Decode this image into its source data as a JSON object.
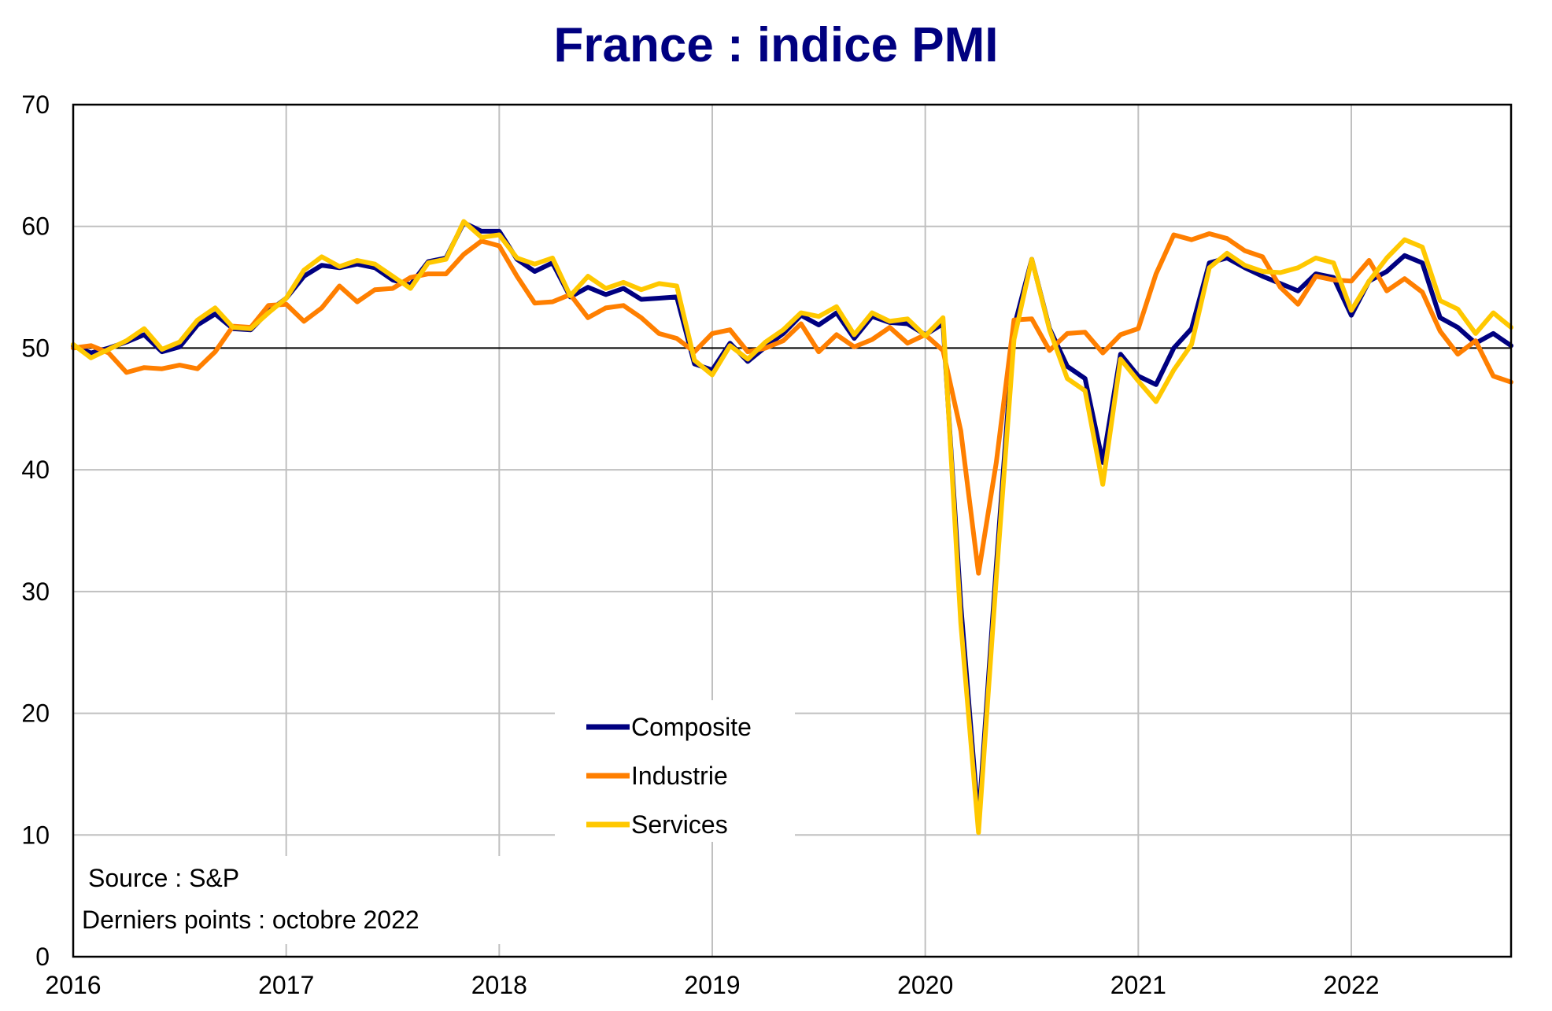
{
  "chart_data": {
    "type": "line",
    "title": "France : indice PMI",
    "title_color": "#000080",
    "ylim": [
      0,
      70
    ],
    "yticks": [
      "0",
      "10",
      "20",
      "30",
      "40",
      "50",
      "60",
      "70"
    ],
    "xlim": [
      "2016-01",
      "2022-10"
    ],
    "xticks": [
      "2016",
      "2017",
      "2018",
      "2019",
      "2020",
      "2021",
      "2022"
    ],
    "reference_line": 50,
    "grid": true,
    "legend_position": "bottom-center",
    "start_month": "2016-01",
    "series": [
      {
        "name": "Composite",
        "color": "#000080",
        "values": [
          50.2,
          49.6,
          50.0,
          50.5,
          51.1,
          49.7,
          50.1,
          51.9,
          52.8,
          51.6,
          51.5,
          53.0,
          54.1,
          55.9,
          56.8,
          56.6,
          56.9,
          56.6,
          55.6,
          55.2,
          57.1,
          57.4,
          60.3,
          59.6,
          59.6,
          57.3,
          56.3,
          57.0,
          54.2,
          55.0,
          54.4,
          54.9,
          54.0,
          54.1,
          54.2,
          48.7,
          48.2,
          50.4,
          48.9,
          50.1,
          51.2,
          52.7,
          51.9,
          52.9,
          50.8,
          52.6,
          52.1,
          52.0,
          51.1,
          52.0,
          28.9,
          11.1,
          32.1,
          51.7,
          57.3,
          51.6,
          48.5,
          47.5,
          40.6,
          49.5,
          47.7,
          47.0,
          50.0,
          51.6,
          57.0,
          57.4,
          56.6,
          55.9,
          55.3,
          54.7,
          56.1,
          55.8,
          52.7,
          55.5,
          56.3,
          57.6,
          57.0,
          52.5,
          51.7,
          50.4,
          51.2,
          50.2
        ]
      },
      {
        "name": "Industrie",
        "color": "#FF7F00",
        "values": [
          50.0,
          50.2,
          49.6,
          48.0,
          48.4,
          48.3,
          48.6,
          48.3,
          49.7,
          51.8,
          51.7,
          53.5,
          53.6,
          52.2,
          53.3,
          55.1,
          53.8,
          54.8,
          54.9,
          55.8,
          56.1,
          56.1,
          57.7,
          58.8,
          58.4,
          55.9,
          53.7,
          53.8,
          54.4,
          52.5,
          53.3,
          53.5,
          52.5,
          51.2,
          50.8,
          49.7,
          51.2,
          51.5,
          49.7,
          50.0,
          50.6,
          52.0,
          49.7,
          51.1,
          50.1,
          50.7,
          51.7,
          50.4,
          51.1,
          49.8,
          43.2,
          31.5,
          40.6,
          52.3,
          52.4,
          49.8,
          51.2,
          51.3,
          49.6,
          51.1,
          51.6,
          56.1,
          59.3,
          58.9,
          59.4,
          59.0,
          58.0,
          57.5,
          55.0,
          53.6,
          55.9,
          55.6,
          55.5,
          57.2,
          54.7,
          55.7,
          54.6,
          51.4,
          49.5,
          50.6,
          47.7,
          47.2
        ]
      },
      {
        "name": "Services",
        "color": "#FFC800",
        "values": [
          50.3,
          49.2,
          49.9,
          50.6,
          51.6,
          49.9,
          50.5,
          52.3,
          53.3,
          51.7,
          51.6,
          52.9,
          54.1,
          56.4,
          57.5,
          56.7,
          57.2,
          56.9,
          55.9,
          54.9,
          57.0,
          57.3,
          60.4,
          59.1,
          59.3,
          57.4,
          56.9,
          57.4,
          54.3,
          55.9,
          54.9,
          55.4,
          54.8,
          55.3,
          55.1,
          49.0,
          47.8,
          50.2,
          49.1,
          50.5,
          51.5,
          52.9,
          52.6,
          53.4,
          51.1,
          52.9,
          52.2,
          52.4,
          51.0,
          52.5,
          27.4,
          10.2,
          31.1,
          50.7,
          57.3,
          51.5,
          47.5,
          46.5,
          38.8,
          49.1,
          47.3,
          45.6,
          48.2,
          50.3,
          56.6,
          57.8,
          56.8,
          56.3,
          56.2,
          56.6,
          57.4,
          57.0,
          53.1,
          55.5,
          57.4,
          58.9,
          58.3,
          53.9,
          53.2,
          51.2,
          52.9,
          51.7
        ]
      }
    ],
    "notes": [
      "Source : S&P",
      "Derniers points : octobre 2022"
    ]
  }
}
